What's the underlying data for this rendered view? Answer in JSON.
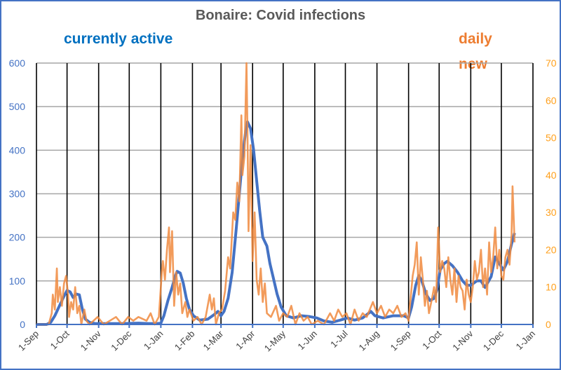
{
  "chart_data": {
    "type": "line",
    "title": "Bonaire: Covid infections",
    "annotations": [
      "currently active",
      "daily new"
    ],
    "x_start": "2020-09-01",
    "x_end": "2022-01-01",
    "x_tick_labels": [
      "1-Sep",
      "1-Oct",
      "1-Nov",
      "1-Dec",
      "1-Jan",
      "1-Feb",
      "1-Mar",
      "1-Apr",
      "1-May",
      "1-Jun",
      "1-Jul",
      "1-Aug",
      "1-Sep",
      "1-Oct",
      "1-Nov",
      "1-Dec",
      "1-Jan"
    ],
    "x_tick_days": [
      0,
      30,
      61,
      91,
      122,
      153,
      181,
      212,
      242,
      273,
      303,
      334,
      365,
      395,
      426,
      456,
      487
    ],
    "y_left": {
      "label": "",
      "ylim": [
        0,
        600
      ],
      "ticks": [
        0,
        100,
        200,
        300,
        400,
        500,
        600
      ],
      "color": "#4472c4"
    },
    "y_right": {
      "label": "",
      "ylim": [
        0,
        70
      ],
      "ticks": [
        0,
        10,
        20,
        30,
        40,
        50,
        60,
        70
      ],
      "color": "#ffa01c"
    },
    "grid": true,
    "series": [
      {
        "name": "currently active",
        "axis": "left",
        "color": "#4472c4",
        "points": [
          [
            0,
            0
          ],
          [
            10,
            0
          ],
          [
            14,
            5
          ],
          [
            18,
            20
          ],
          [
            22,
            40
          ],
          [
            26,
            60
          ],
          [
            30,
            78
          ],
          [
            33,
            75
          ],
          [
            36,
            62
          ],
          [
            39,
            70
          ],
          [
            42,
            68
          ],
          [
            45,
            35
          ],
          [
            48,
            12
          ],
          [
            52,
            5
          ],
          [
            58,
            2
          ],
          [
            70,
            2
          ],
          [
            85,
            2
          ],
          [
            100,
            3
          ],
          [
            110,
            2
          ],
          [
            118,
            2
          ],
          [
            122,
            3
          ],
          [
            125,
            20
          ],
          [
            129,
            55
          ],
          [
            133,
            85
          ],
          [
            136,
            110
          ],
          [
            138,
            122
          ],
          [
            141,
            118
          ],
          [
            144,
            95
          ],
          [
            147,
            60
          ],
          [
            150,
            35
          ],
          [
            154,
            20
          ],
          [
            160,
            10
          ],
          [
            168,
            12
          ],
          [
            174,
            22
          ],
          [
            178,
            30
          ],
          [
            181,
            20
          ],
          [
            184,
            30
          ],
          [
            188,
            60
          ],
          [
            192,
            120
          ],
          [
            196,
            220
          ],
          [
            199,
            300
          ],
          [
            202,
            380
          ],
          [
            205,
            440
          ],
          [
            207,
            465
          ],
          [
            210,
            450
          ],
          [
            213,
            400
          ],
          [
            216,
            330
          ],
          [
            219,
            260
          ],
          [
            222,
            200
          ],
          [
            226,
            180
          ],
          [
            229,
            140
          ],
          [
            232,
            110
          ],
          [
            236,
            70
          ],
          [
            240,
            40
          ],
          [
            245,
            20
          ],
          [
            252,
            15
          ],
          [
            260,
            20
          ],
          [
            268,
            18
          ],
          [
            275,
            15
          ],
          [
            282,
            8
          ],
          [
            290,
            5
          ],
          [
            298,
            10
          ],
          [
            305,
            15
          ],
          [
            312,
            10
          ],
          [
            320,
            15
          ],
          [
            328,
            30
          ],
          [
            332,
            20
          ],
          [
            340,
            15
          ],
          [
            350,
            20
          ],
          [
            360,
            20
          ],
          [
            365,
            15
          ],
          [
            368,
            40
          ],
          [
            372,
            90
          ],
          [
            375,
            112
          ],
          [
            378,
            100
          ],
          [
            382,
            70
          ],
          [
            386,
            55
          ],
          [
            390,
            60
          ],
          [
            393,
            80
          ],
          [
            396,
            125
          ],
          [
            400,
            140
          ],
          [
            403,
            145
          ],
          [
            408,
            135
          ],
          [
            413,
            120
          ],
          [
            418,
            100
          ],
          [
            422,
            90
          ],
          [
            426,
            90
          ],
          [
            432,
            100
          ],
          [
            436,
            100
          ],
          [
            440,
            85
          ],
          [
            446,
            110
          ],
          [
            450,
            155
          ],
          [
            454,
            140
          ],
          [
            458,
            125
          ],
          [
            462,
            145
          ],
          [
            466,
            185
          ],
          [
            469,
            210
          ]
        ]
      },
      {
        "name": "daily new",
        "axis": "right",
        "color": "#f08a3e",
        "points": [
          [
            0,
            0
          ],
          [
            12,
            0
          ],
          [
            15,
            3
          ],
          [
            16,
            8
          ],
          [
            18,
            4
          ],
          [
            20,
            15
          ],
          [
            21,
            6
          ],
          [
            23,
            10
          ],
          [
            25,
            5
          ],
          [
            27,
            11
          ],
          [
            29,
            13
          ],
          [
            31,
            8
          ],
          [
            32,
            2
          ],
          [
            34,
            6
          ],
          [
            36,
            4
          ],
          [
            38,
            10
          ],
          [
            40,
            3
          ],
          [
            42,
            5
          ],
          [
            44,
            0
          ],
          [
            47,
            4
          ],
          [
            49,
            1
          ],
          [
            52,
            0
          ],
          [
            60,
            2
          ],
          [
            66,
            0
          ],
          [
            72,
            1
          ],
          [
            78,
            2
          ],
          [
            84,
            0
          ],
          [
            90,
            2
          ],
          [
            95,
            1
          ],
          [
            100,
            2
          ],
          [
            108,
            1
          ],
          [
            112,
            3
          ],
          [
            116,
            0
          ],
          [
            120,
            2
          ],
          [
            123,
            14
          ],
          [
            124,
            17
          ],
          [
            126,
            12
          ],
          [
            128,
            20
          ],
          [
            130,
            26
          ],
          [
            131,
            14
          ],
          [
            133,
            25
          ],
          [
            135,
            5
          ],
          [
            137,
            14
          ],
          [
            139,
            8
          ],
          [
            141,
            11
          ],
          [
            143,
            3
          ],
          [
            146,
            6
          ],
          [
            148,
            2
          ],
          [
            150,
            4
          ],
          [
            154,
            1
          ],
          [
            158,
            2
          ],
          [
            162,
            0
          ],
          [
            166,
            2
          ],
          [
            170,
            8
          ],
          [
            172,
            4
          ],
          [
            174,
            7
          ],
          [
            176,
            0
          ],
          [
            179,
            3
          ],
          [
            182,
            4
          ],
          [
            185,
            9
          ],
          [
            188,
            18
          ],
          [
            190,
            15
          ],
          [
            193,
            30
          ],
          [
            195,
            28
          ],
          [
            197,
            38
          ],
          [
            199,
            33
          ],
          [
            201,
            56
          ],
          [
            202,
            40
          ],
          [
            204,
            45
          ],
          [
            206,
            70
          ],
          [
            207,
            52
          ],
          [
            208,
            25
          ],
          [
            210,
            48
          ],
          [
            212,
            17
          ],
          [
            214,
            30
          ],
          [
            216,
            12
          ],
          [
            218,
            8
          ],
          [
            220,
            15
          ],
          [
            222,
            6
          ],
          [
            224,
            11
          ],
          [
            226,
            3
          ],
          [
            230,
            2
          ],
          [
            235,
            5
          ],
          [
            238,
            1
          ],
          [
            242,
            3
          ],
          [
            246,
            2
          ],
          [
            250,
            5
          ],
          [
            254,
            0
          ],
          [
            258,
            3
          ],
          [
            262,
            1
          ],
          [
            266,
            2
          ],
          [
            270,
            0
          ],
          [
            276,
            1
          ],
          [
            282,
            0
          ],
          [
            288,
            3
          ],
          [
            292,
            1
          ],
          [
            296,
            4
          ],
          [
            300,
            2
          ],
          [
            304,
            3
          ],
          [
            308,
            0
          ],
          [
            312,
            4
          ],
          [
            316,
            1
          ],
          [
            320,
            3
          ],
          [
            324,
            2
          ],
          [
            330,
            6
          ],
          [
            334,
            3
          ],
          [
            338,
            5
          ],
          [
            342,
            2
          ],
          [
            346,
            4
          ],
          [
            350,
            3
          ],
          [
            354,
            5
          ],
          [
            358,
            2
          ],
          [
            362,
            3
          ],
          [
            365,
            1
          ],
          [
            367,
            7
          ],
          [
            369,
            13
          ],
          [
            371,
            16
          ],
          [
            373,
            22
          ],
          [
            375,
            8
          ],
          [
            377,
            18
          ],
          [
            379,
            12
          ],
          [
            381,
            5
          ],
          [
            383,
            9
          ],
          [
            385,
            3
          ],
          [
            388,
            7
          ],
          [
            390,
            10
          ],
          [
            392,
            6
          ],
          [
            394,
            26
          ],
          [
            396,
            14
          ],
          [
            398,
            17
          ],
          [
            400,
            15
          ],
          [
            402,
            10
          ],
          [
            404,
            18
          ],
          [
            406,
            12
          ],
          [
            408,
            8
          ],
          [
            410,
            15
          ],
          [
            412,
            6
          ],
          [
            414,
            13
          ],
          [
            416,
            10
          ],
          [
            418,
            9
          ],
          [
            420,
            4
          ],
          [
            422,
            12
          ],
          [
            424,
            8
          ],
          [
            426,
            6
          ],
          [
            428,
            10
          ],
          [
            430,
            17
          ],
          [
            432,
            12
          ],
          [
            434,
            14
          ],
          [
            436,
            20
          ],
          [
            438,
            10
          ],
          [
            440,
            15
          ],
          [
            442,
            8
          ],
          [
            444,
            22
          ],
          [
            446,
            14
          ],
          [
            448,
            18
          ],
          [
            450,
            26
          ],
          [
            452,
            15
          ],
          [
            454,
            20
          ],
          [
            456,
            13
          ],
          [
            458,
            12
          ],
          [
            460,
            18
          ],
          [
            462,
            20
          ],
          [
            464,
            16
          ],
          [
            466,
            24
          ],
          [
            467,
            37
          ],
          [
            469,
            22
          ]
        ]
      }
    ]
  }
}
